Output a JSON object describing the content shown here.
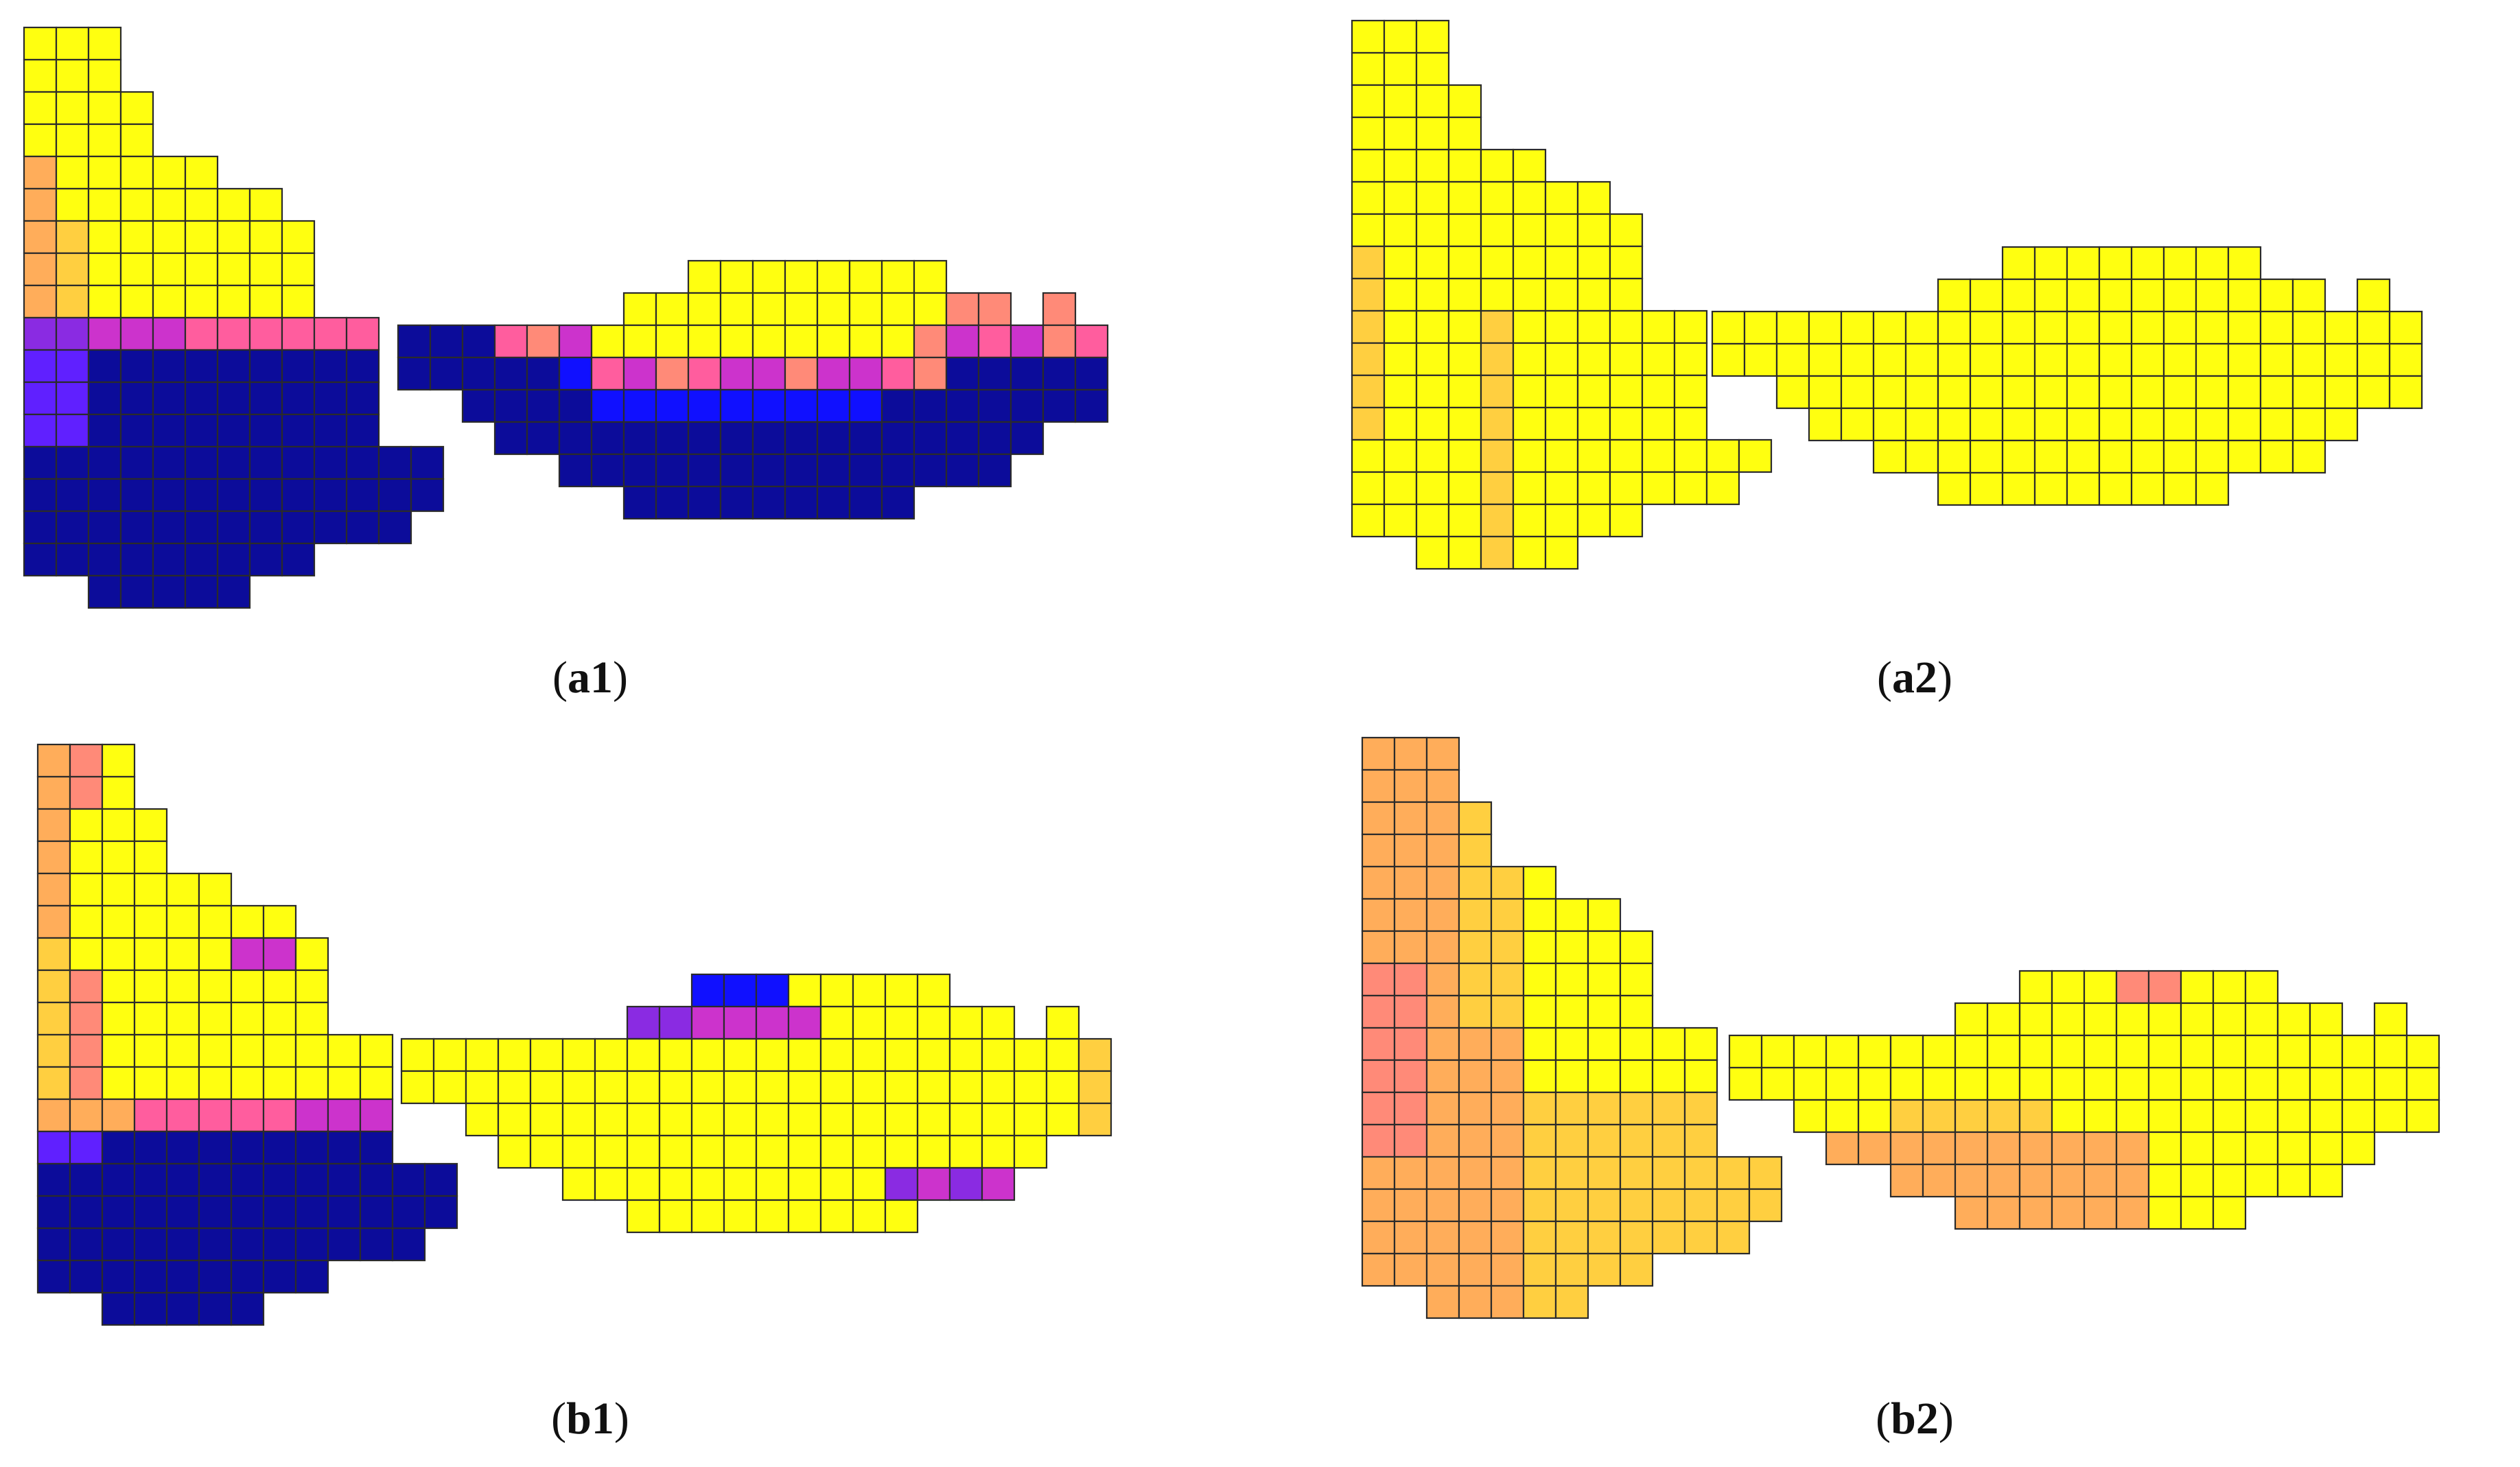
{
  "colors": {
    "yellow": "#ffff10",
    "light_orange": "#ffcf40",
    "orange": "#ffad5a",
    "salmon": "#ff8a78",
    "pink": "#ff5d9e",
    "magenta": "#cc33cc",
    "purple": "#8a2be2",
    "violet": "#6020ff",
    "blue": "#1010ff",
    "dark_blue": "#0c0c9a",
    "grid_line": "#2b2b2b"
  },
  "panels": [
    {
      "id": "a1",
      "caption": {
        "open": "(",
        "label": "a1",
        "close": ")"
      },
      "fill_pattern": "two-phase: yellow upper region, dark blue lower region, orange/pink/violet transition band"
    },
    {
      "id": "a2",
      "caption": {
        "open": "(",
        "label": "a2",
        "close": ")"
      },
      "fill_pattern": "nearly uniform yellow with slight orange on left edge"
    },
    {
      "id": "b1",
      "caption": {
        "open": "(",
        "label": "b1",
        "close": ")"
      },
      "fill_pattern": "yellow upper region, dark blue lower-left block, violet/magenta band on right upper edge"
    },
    {
      "id": "b2",
      "caption": {
        "open": "(",
        "label": "b2",
        "close": ")"
      },
      "fill_pattern": "orange/salmon gradient on left fading to yellow on right"
    }
  ]
}
